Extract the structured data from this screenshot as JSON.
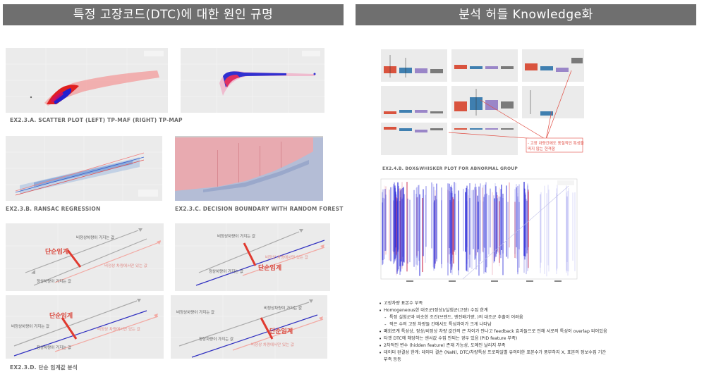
{
  "headers": {
    "left": "특정 고장코드(DTC)에 대한 원인 규명",
    "right": "분석 허들 Knowledge화"
  },
  "captions": {
    "scatter": "EX2.3.A. SCATTER PLOT (LEFT) TP-MAF (RIGHT) TP-MAP",
    "ransac": "EX2.3.B. RANSAC REGRESSION",
    "boundary": "EX2.3.C. DECISION BOUNDARY WITH RANDOM FOREST",
    "threshold": "EX2.3.D. 단순 임계값 분석",
    "boxplot": "EX2.4.B. BOX&WHISKER PLOT FOR ABNORMAL GROUP"
  },
  "diagram_labels": {
    "abnormal_value": "비정상차량이 가지는 값",
    "normal_value": "정상차량이 가지는 값",
    "threshold": "단순임계",
    "abnormal_only": "비정상 차량에서만 있는 값"
  },
  "callout": {
    "line1": "- 고장 차량간에도 동질적인 특성을",
    "line2": "  띄지 않는 현격함"
  },
  "notes": [
    {
      "text": "고장차량 표본수 부족",
      "sub": false
    },
    {
      "text": "Homogeneous한 대조군(정상)/실험군(고장) 수집 한계",
      "sub": false
    },
    {
      "text": "특정 실험군과 비슷한 조건(브랜드, 엔진배기량, )의 대조군 추출이 어려움",
      "sub": true
    },
    {
      "text": "적은 수의 고장 차량들 간에서도 특성차이가 크게 나타남",
      "sub": true
    },
    {
      "text": "폐회로계 특성상, 정상/비정상 차량 값간의 큰 차이가 안나고 feedback 효과들으로 인해 서로의 특성이 overlap 되어있음",
      "sub": false
    },
    {
      "text": "타겟 DTC에 해당하는 센서값 수집 안되는 경우 있음 (PID feature 부족)",
      "sub": false
    },
    {
      "text": "2차적인 변수 (hidden feature) 존재 가능성, 도메인 날리지 부족",
      "sub": false
    },
    {
      "text": "데이터 완결성 한계: 데이터 결손 (NaN), DTC/차량특성 프로파일별 유의미한 표본수가 풍부하지 X, 표본의 정보수집 기간",
      "sub": false
    },
    {
      "text": "부족 등등",
      "sub": true
    }
  ]
}
